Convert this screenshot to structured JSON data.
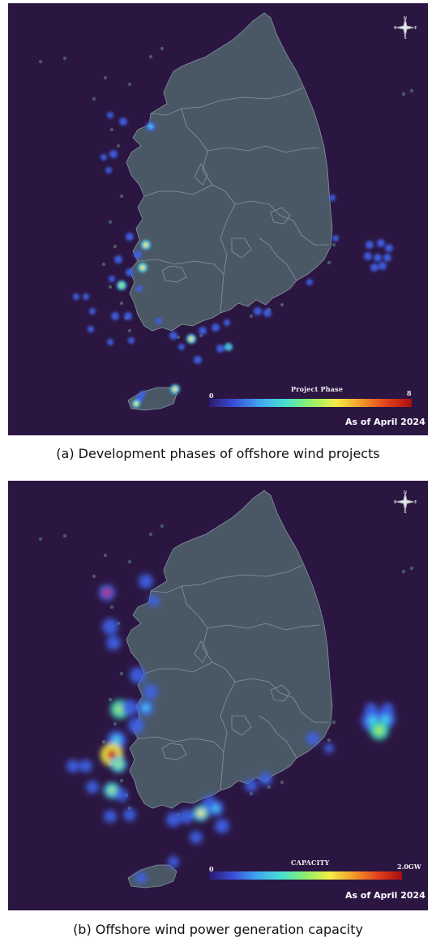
{
  "panel_a": {
    "caption": "(a) Development phases of offshore wind projects",
    "legend_title": "Project Phase",
    "legend_min": "0",
    "legend_max": "8",
    "as_of": "As of April 2024"
  },
  "panel_b": {
    "caption": "(b) Offshore wind power generation capacity",
    "legend_title": "CAPACITY",
    "legend_min": "0",
    "legend_max": "2.0GW",
    "as_of": "As of April 2024"
  },
  "compass": {
    "n": "N",
    "s": "S",
    "e": "E",
    "w": "W"
  },
  "colors": {
    "background": "#2b1642",
    "land": "#4a5866",
    "border": "#8793a0"
  }
}
